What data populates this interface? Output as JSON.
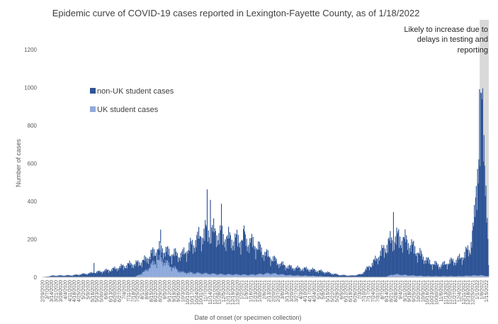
{
  "chart_data": {
    "type": "bar",
    "stacked": true,
    "title": "Epidemic curve of COVID-19 cases reported in Lexington-Fayette County, as of 1/18/2022",
    "xlabel": "Date of onset (or specimen collection)",
    "ylabel": "Number of cases",
    "ylim": [
      0,
      1300
    ],
    "yticks": [
      0,
      200,
      400,
      600,
      800,
      1000,
      1200
    ],
    "x_start_date": "2020-02-29",
    "x_end_date": "2022-01-18",
    "x_tick_interval_days": 7,
    "legend_position": "left-middle",
    "series": [
      {
        "name": "non-UK student cases",
        "color": "#2f5597",
        "trend_points": [
          [
            "2020-02-29",
            0
          ],
          [
            "2020-03-15",
            8
          ],
          [
            "2020-04-15",
            10
          ],
          [
            "2020-05-15",
            22
          ],
          [
            "2020-06-15",
            40
          ],
          [
            "2020-07-15",
            70
          ],
          [
            "2020-08-01",
            60
          ],
          [
            "2020-08-20",
            55
          ],
          [
            "2020-09-10",
            60
          ],
          [
            "2020-10-01",
            90
          ],
          [
            "2020-10-20",
            160
          ],
          [
            "2020-11-10",
            230
          ],
          [
            "2020-11-25",
            210
          ],
          [
            "2020-12-10",
            190
          ],
          [
            "2020-12-20",
            180
          ],
          [
            "2021-01-05",
            185
          ],
          [
            "2021-01-20",
            160
          ],
          [
            "2021-02-10",
            95
          ],
          [
            "2021-03-01",
            55
          ],
          [
            "2021-03-20",
            40
          ],
          [
            "2021-04-15",
            35
          ],
          [
            "2021-05-01",
            28
          ],
          [
            "2021-06-01",
            12
          ],
          [
            "2021-06-20",
            8
          ],
          [
            "2021-07-05",
            15
          ],
          [
            "2021-07-25",
            80
          ],
          [
            "2021-08-15",
            170
          ],
          [
            "2021-08-31",
            195
          ],
          [
            "2021-09-15",
            175
          ],
          [
            "2021-10-01",
            120
          ],
          [
            "2021-10-20",
            70
          ],
          [
            "2021-11-05",
            55
          ],
          [
            "2021-11-20",
            75
          ],
          [
            "2021-12-05",
            90
          ],
          [
            "2021-12-20",
            140
          ],
          [
            "2021-12-28",
            300
          ],
          [
            "2022-01-03",
            720
          ],
          [
            "2022-01-08",
            820
          ],
          [
            "2022-01-12",
            650
          ],
          [
            "2022-01-15",
            420
          ],
          [
            "2022-01-18",
            60
          ]
        ],
        "peaks": [
          [
            "2020-05-18",
            75
          ],
          [
            "2020-11-09",
            440
          ],
          [
            "2020-11-14",
            390
          ],
          [
            "2020-12-01",
            370
          ],
          [
            "2021-01-05",
            260
          ],
          [
            "2021-08-24",
            330
          ],
          [
            "2022-01-04",
            980
          ],
          [
            "2022-01-07",
            960
          ]
        ]
      },
      {
        "name": "UK student cases",
        "color": "#8faadc",
        "trend_points": [
          [
            "2020-02-29",
            0
          ],
          [
            "2020-07-20",
            0
          ],
          [
            "2020-08-05",
            30
          ],
          [
            "2020-08-20",
            80
          ],
          [
            "2020-08-30",
            95
          ],
          [
            "2020-09-15",
            55
          ],
          [
            "2020-10-01",
            25
          ],
          [
            "2020-11-01",
            20
          ],
          [
            "2020-12-01",
            15
          ],
          [
            "2021-01-15",
            12
          ],
          [
            "2021-02-15",
            20
          ],
          [
            "2021-03-15",
            10
          ],
          [
            "2021-05-01",
            5
          ],
          [
            "2021-06-01",
            0
          ],
          [
            "2021-08-10",
            0
          ],
          [
            "2021-08-25",
            15
          ],
          [
            "2021-09-15",
            10
          ],
          [
            "2021-10-15",
            5
          ],
          [
            "2021-12-01",
            5
          ],
          [
            "2022-01-05",
            10
          ],
          [
            "2022-01-18",
            5
          ]
        ],
        "peaks": [
          [
            "2020-08-29",
            180
          ]
        ]
      }
    ],
    "annotation": {
      "lines": [
        "Likely to increase due to",
        "delays in testing and",
        "reporting"
      ],
      "shaded_from": "2022-01-05",
      "shaded_to": "2022-01-18",
      "shade_color": "#d9d9d9"
    }
  }
}
